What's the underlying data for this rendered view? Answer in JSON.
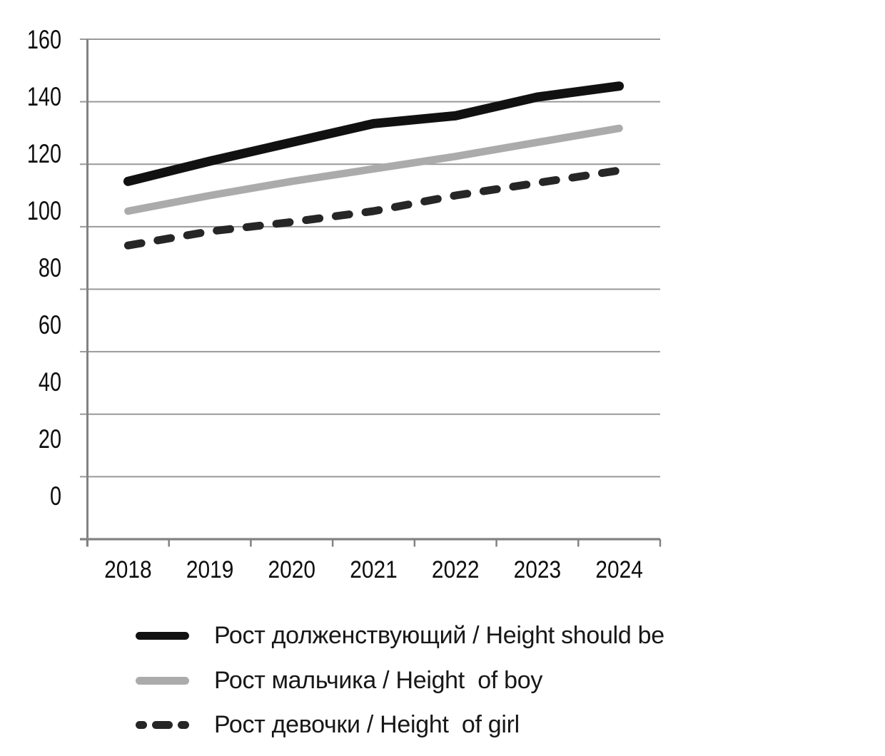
{
  "chart_data": {
    "type": "line",
    "title": "",
    "xlabel": "",
    "ylabel": "",
    "x_categories": [
      "2018",
      "2019",
      "2020",
      "2021",
      "2022",
      "2023",
      "2024"
    ],
    "ylim": [
      0,
      160
    ],
    "ytick_step": 20,
    "ytick_labels": [
      "160",
      "140",
      "120",
      "100",
      "80",
      "60",
      "40",
      "20",
      "0"
    ],
    "grid": "horizontal-on",
    "legend_position": "bottom-left",
    "series": [
      {
        "name": "Рост долженствующий / Height should be",
        "style": "solid",
        "color": "#111111",
        "values": [
          114.5,
          121,
          127,
          133,
          135.5,
          141.5,
          145
        ]
      },
      {
        "name": "Рост мальчика / Height  of boy",
        "style": "solid",
        "color": "#ababab",
        "values": [
          105,
          110,
          114.5,
          118.5,
          122.5,
          127,
          131.5
        ]
      },
      {
        "name": "Рост девочки / Height  of girl",
        "style": "dashed",
        "color": "#262626",
        "values": [
          94,
          98.5,
          101.5,
          105,
          110,
          114,
          118
        ]
      }
    ],
    "colors": {
      "gridline": "#999999",
      "axis": "#828282",
      "tick_text": "#0e0e0e"
    }
  }
}
